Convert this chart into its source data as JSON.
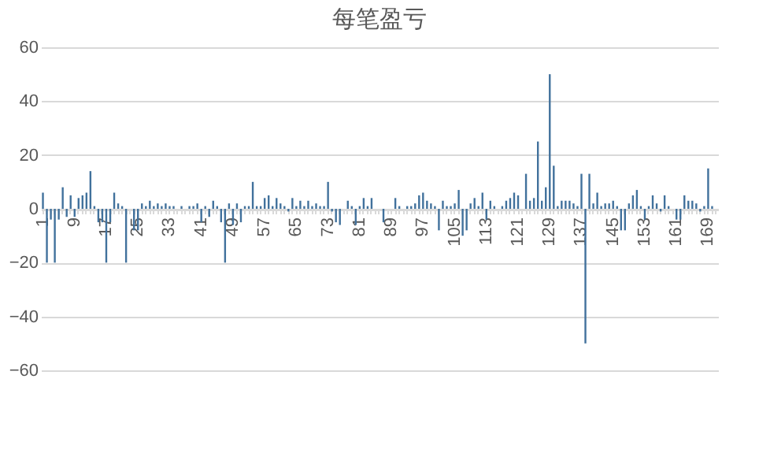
{
  "chart_data": {
    "type": "bar",
    "title": "每笔盈亏",
    "categories": [
      "1",
      null,
      null,
      null,
      null,
      null,
      null,
      null,
      "9",
      null,
      null,
      null,
      null,
      null,
      null,
      null,
      "17",
      null,
      null,
      null,
      null,
      null,
      null,
      null,
      "25",
      null,
      null,
      null,
      null,
      null,
      null,
      null,
      "33",
      null,
      null,
      null,
      null,
      null,
      null,
      null,
      "41",
      null,
      null,
      null,
      null,
      null,
      null,
      null,
      "49",
      null,
      null,
      null,
      null,
      null,
      null,
      null,
      "57",
      null,
      null,
      null,
      null,
      null,
      null,
      null,
      "65",
      null,
      null,
      null,
      null,
      null,
      null,
      null,
      "73",
      null,
      null,
      null,
      null,
      null,
      null,
      null,
      "81",
      null,
      null,
      null,
      null,
      null,
      null,
      null,
      "89",
      null,
      null,
      null,
      null,
      null,
      null,
      null,
      "97",
      null,
      null,
      null,
      null,
      null,
      null,
      null,
      "105",
      null,
      null,
      null,
      null,
      null,
      null,
      null,
      "113",
      null,
      null,
      null,
      null,
      null,
      null,
      null,
      "121",
      null,
      null,
      null,
      null,
      null,
      null,
      null,
      "129",
      null,
      null,
      null,
      null,
      null,
      null,
      null,
      "137",
      null,
      null,
      null,
      null,
      null,
      null,
      null,
      "145",
      null,
      null,
      null,
      null,
      null,
      null,
      null,
      "153",
      null,
      null,
      null,
      null,
      null,
      null,
      null,
      "161",
      null,
      null,
      null,
      null,
      null,
      null,
      null,
      "169",
      null,
      null
    ],
    "values": [
      6,
      -20,
      -4,
      -20,
      -4,
      8,
      -3,
      5,
      -3,
      4,
      5,
      6,
      14,
      1,
      -5,
      -5,
      -20,
      -5,
      6,
      2,
      1,
      -20,
      0,
      -8,
      -8,
      2,
      1,
      3,
      1,
      2,
      1,
      2,
      1,
      1,
      0,
      1,
      0,
      1,
      1,
      2,
      -5,
      1,
      -3,
      3,
      1,
      -5,
      -20,
      2,
      -6,
      2,
      -5,
      1,
      1,
      10,
      1,
      1,
      4,
      5,
      1,
      4,
      2,
      1,
      -1,
      4,
      1,
      3,
      1,
      3,
      1,
      2,
      1,
      1,
      10,
      -1,
      -5,
      -6,
      0,
      3,
      1,
      -6,
      1,
      4,
      1,
      4,
      0,
      0,
      -5,
      0,
      0,
      4,
      1,
      0,
      1,
      1,
      2,
      5,
      6,
      3,
      2,
      1,
      -8,
      3,
      1,
      1,
      2,
      7,
      -10,
      -8,
      2,
      4,
      1,
      6,
      -4,
      3,
      1,
      0,
      1,
      3,
      4,
      6,
      5,
      0,
      13,
      3,
      4,
      25,
      3,
      8,
      50,
      16,
      1,
      3,
      3,
      3,
      2,
      1,
      13,
      -50,
      13,
      2,
      6,
      1,
      2,
      2,
      3,
      1,
      -8,
      -8,
      2,
      5,
      7,
      1,
      -4,
      1,
      5,
      2,
      -1,
      5,
      1,
      0,
      -4,
      -4,
      5,
      3,
      3,
      2,
      -1,
      1,
      15,
      1,
      0
    ],
    "color": "#41719c",
    "ylim": [
      -60,
      60
    ],
    "yticks": [
      -60,
      -40,
      -20,
      0,
      20,
      40,
      60
    ],
    "grid": "y"
  }
}
